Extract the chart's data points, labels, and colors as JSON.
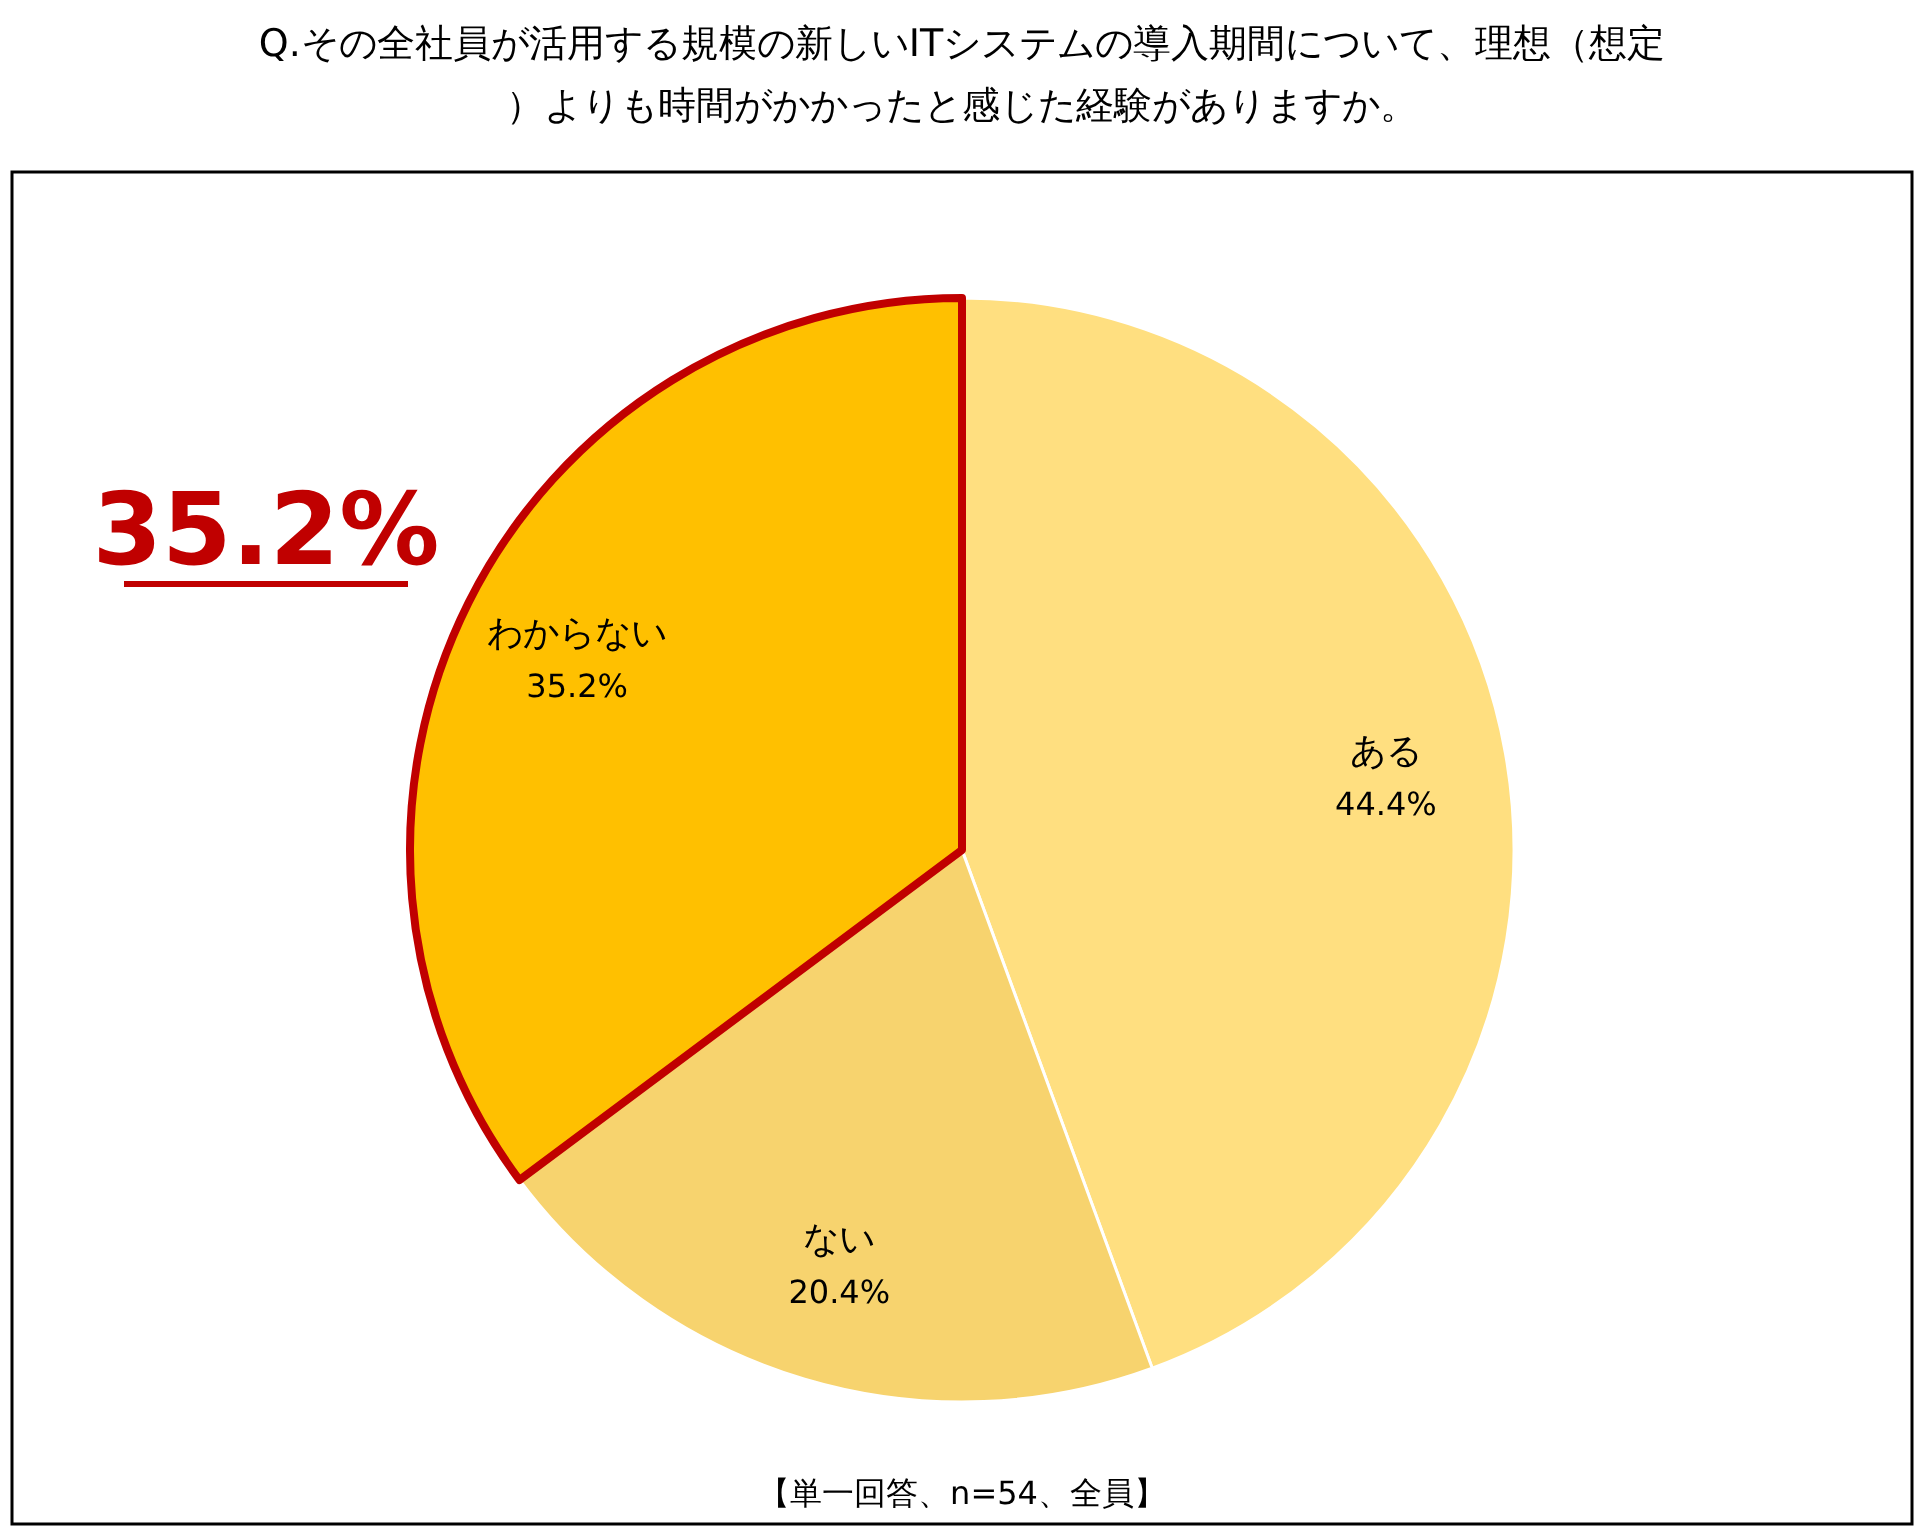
{
  "chart_data": {
    "type": "pie",
    "title": "Q.その全社員が活用する規模の新しいITシステムの導入期間について、理想（想定）よりも時間がかかったと感じた経験がありますか。",
    "categories": [
      "ある",
      "ない",
      "わからない"
    ],
    "values": [
      44.4,
      20.4,
      35.2
    ],
    "colors": [
      "#ffdf80",
      "#f7d36e",
      "#ffc000"
    ],
    "value_labels": [
      "44.4%",
      "20.4%",
      "35.2%"
    ],
    "annotations": [
      {
        "text": "35.2%",
        "x": "わからない"
      },
      "【単一回答、n=54、全員】"
    ]
  }
}
